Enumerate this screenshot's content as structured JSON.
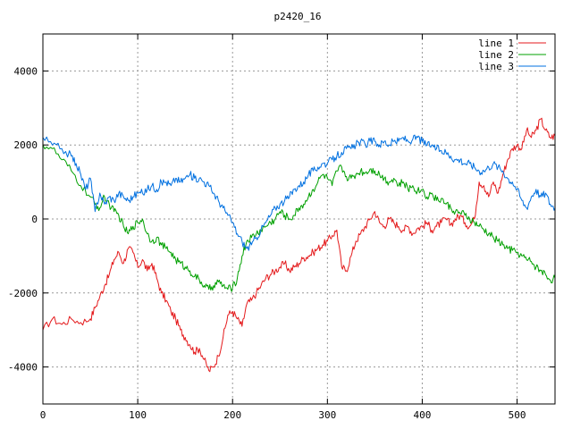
{
  "chart_data": {
    "type": "line",
    "title": "p2420_16",
    "xlabel": "",
    "ylabel": "",
    "xlim": [
      0,
      540
    ],
    "ylim": [
      -5000,
      5000
    ],
    "x_ticks": [
      0,
      100,
      200,
      300,
      400,
      500
    ],
    "y_ticks": [
      -4000,
      -2000,
      0,
      2000,
      4000
    ],
    "grid": true,
    "legend_position": "top-right",
    "series": [
      {
        "name": "line 1",
        "color": "#e41a1c",
        "points": [
          [
            0,
            -3000
          ],
          [
            10,
            -2700
          ],
          [
            20,
            -2850
          ],
          [
            30,
            -2700
          ],
          [
            40,
            -2800
          ],
          [
            50,
            -2700
          ],
          [
            55,
            -2400
          ],
          [
            60,
            -2100
          ],
          [
            65,
            -1800
          ],
          [
            70,
            -1500
          ],
          [
            75,
            -1100
          ],
          [
            80,
            -900
          ],
          [
            85,
            -1200
          ],
          [
            90,
            -800
          ],
          [
            95,
            -900
          ],
          [
            100,
            -1300
          ],
          [
            105,
            -1100
          ],
          [
            110,
            -1400
          ],
          [
            115,
            -1200
          ],
          [
            120,
            -1600
          ],
          [
            125,
            -2000
          ],
          [
            130,
            -2200
          ],
          [
            135,
            -2500
          ],
          [
            140,
            -2700
          ],
          [
            145,
            -3000
          ],
          [
            150,
            -3200
          ],
          [
            155,
            -3400
          ],
          [
            160,
            -3600
          ],
          [
            165,
            -3500
          ],
          [
            170,
            -3800
          ],
          [
            175,
            -4100
          ],
          [
            180,
            -4000
          ],
          [
            185,
            -3700
          ],
          [
            190,
            -3200
          ],
          [
            195,
            -2600
          ],
          [
            200,
            -2500
          ],
          [
            205,
            -2700
          ],
          [
            210,
            -2900
          ],
          [
            215,
            -2300
          ],
          [
            220,
            -2200
          ],
          [
            225,
            -2000
          ],
          [
            230,
            -1800
          ],
          [
            235,
            -1600
          ],
          [
            240,
            -1500
          ],
          [
            245,
            -1400
          ],
          [
            250,
            -1300
          ],
          [
            255,
            -1200
          ],
          [
            260,
            -1400
          ],
          [
            265,
            -1300
          ],
          [
            270,
            -1200
          ],
          [
            275,
            -1050
          ],
          [
            280,
            -1000
          ],
          [
            285,
            -900
          ],
          [
            290,
            -800
          ],
          [
            295,
            -700
          ],
          [
            300,
            -600
          ],
          [
            305,
            -450
          ],
          [
            310,
            -300
          ],
          [
            315,
            -1300
          ],
          [
            320,
            -1400
          ],
          [
            325,
            -1000
          ],
          [
            330,
            -600
          ],
          [
            335,
            -400
          ],
          [
            340,
            -200
          ],
          [
            345,
            0
          ],
          [
            350,
            200
          ],
          [
            355,
            -100
          ],
          [
            360,
            -200
          ],
          [
            365,
            0
          ],
          [
            370,
            -100
          ],
          [
            375,
            -200
          ],
          [
            380,
            -300
          ],
          [
            385,
            -200
          ],
          [
            390,
            -400
          ],
          [
            395,
            -250
          ],
          [
            400,
            -200
          ],
          [
            405,
            -100
          ],
          [
            410,
            -300
          ],
          [
            415,
            -200
          ],
          [
            420,
            -100
          ],
          [
            425,
            0
          ],
          [
            430,
            -150
          ],
          [
            435,
            0
          ],
          [
            440,
            100
          ],
          [
            445,
            -100
          ],
          [
            450,
            -200
          ],
          [
            455,
            0
          ],
          [
            460,
            1000
          ],
          [
            465,
            900
          ],
          [
            470,
            600
          ],
          [
            475,
            1000
          ],
          [
            480,
            700
          ],
          [
            485,
            1200
          ],
          [
            490,
            1600
          ],
          [
            495,
            1900
          ],
          [
            500,
            2000
          ],
          [
            505,
            1900
          ],
          [
            510,
            2400
          ],
          [
            515,
            2200
          ],
          [
            520,
            2400
          ],
          [
            525,
            2700
          ],
          [
            530,
            2400
          ],
          [
            535,
            2200
          ],
          [
            540,
            2250
          ]
        ]
      },
      {
        "name": "line 2",
        "color": "#00a000",
        "points": [
          [
            0,
            2000
          ],
          [
            10,
            1900
          ],
          [
            20,
            1600
          ],
          [
            30,
            1300
          ],
          [
            40,
            900
          ],
          [
            50,
            600
          ],
          [
            55,
            400
          ],
          [
            60,
            300
          ],
          [
            65,
            600
          ],
          [
            70,
            400
          ],
          [
            75,
            200
          ],
          [
            80,
            100
          ],
          [
            85,
            -200
          ],
          [
            90,
            -400
          ],
          [
            95,
            -200
          ],
          [
            100,
            -100
          ],
          [
            105,
            0
          ],
          [
            110,
            -400
          ],
          [
            115,
            -600
          ],
          [
            120,
            -500
          ],
          [
            125,
            -700
          ],
          [
            130,
            -800
          ],
          [
            135,
            -900
          ],
          [
            140,
            -1100
          ],
          [
            145,
            -1200
          ],
          [
            150,
            -1300
          ],
          [
            155,
            -1400
          ],
          [
            160,
            -1550
          ],
          [
            165,
            -1650
          ],
          [
            170,
            -1800
          ],
          [
            175,
            -1900
          ],
          [
            180,
            -1800
          ],
          [
            185,
            -1700
          ],
          [
            190,
            -1800
          ],
          [
            195,
            -1900
          ],
          [
            200,
            -1850
          ],
          [
            205,
            -1600
          ],
          [
            210,
            -1000
          ],
          [
            215,
            -600
          ],
          [
            220,
            -500
          ],
          [
            225,
            -400
          ],
          [
            230,
            -300
          ],
          [
            235,
            -200
          ],
          [
            240,
            -100
          ],
          [
            245,
            0
          ],
          [
            250,
            200
          ],
          [
            255,
            100
          ],
          [
            260,
            0
          ],
          [
            265,
            100
          ],
          [
            270,
            300
          ],
          [
            275,
            400
          ],
          [
            280,
            600
          ],
          [
            285,
            800
          ],
          [
            290,
            1000
          ],
          [
            295,
            1200
          ],
          [
            300,
            1100
          ],
          [
            305,
            900
          ],
          [
            310,
            1300
          ],
          [
            315,
            1400
          ],
          [
            320,
            1150
          ],
          [
            325,
            1100
          ],
          [
            330,
            1200
          ],
          [
            335,
            1300
          ],
          [
            340,
            1250
          ],
          [
            345,
            1350
          ],
          [
            350,
            1300
          ],
          [
            355,
            1200
          ],
          [
            360,
            1100
          ],
          [
            365,
            1000
          ],
          [
            370,
            1100
          ],
          [
            375,
            900
          ],
          [
            380,
            1000
          ],
          [
            385,
            800
          ],
          [
            390,
            900
          ],
          [
            395,
            750
          ],
          [
            400,
            800
          ],
          [
            405,
            600
          ],
          [
            410,
            700
          ],
          [
            415,
            500
          ],
          [
            420,
            550
          ],
          [
            425,
            400
          ],
          [
            430,
            300
          ],
          [
            435,
            200
          ],
          [
            440,
            150
          ],
          [
            445,
            100
          ],
          [
            450,
            0
          ],
          [
            455,
            -100
          ],
          [
            460,
            -200
          ],
          [
            465,
            -300
          ],
          [
            470,
            -400
          ],
          [
            475,
            -500
          ],
          [
            480,
            -600
          ],
          [
            485,
            -700
          ],
          [
            490,
            -800
          ],
          [
            495,
            -850
          ],
          [
            500,
            -900
          ],
          [
            505,
            -1000
          ],
          [
            510,
            -1100
          ],
          [
            515,
            -1150
          ],
          [
            520,
            -1300
          ],
          [
            525,
            -1400
          ],
          [
            530,
            -1500
          ],
          [
            535,
            -1650
          ],
          [
            540,
            -1600
          ]
        ]
      },
      {
        "name": "line 3",
        "color": "#0070e0",
        "points": [
          [
            0,
            2200
          ],
          [
            10,
            2000
          ],
          [
            20,
            1900
          ],
          [
            30,
            1700
          ],
          [
            35,
            1500
          ],
          [
            40,
            1200
          ],
          [
            45,
            800
          ],
          [
            50,
            1100
          ],
          [
            55,
            200
          ],
          [
            60,
            700
          ],
          [
            65,
            400
          ],
          [
            70,
            600
          ],
          [
            75,
            500
          ],
          [
            80,
            700
          ],
          [
            85,
            600
          ],
          [
            90,
            500
          ],
          [
            95,
            600
          ],
          [
            100,
            700
          ],
          [
            105,
            700
          ],
          [
            110,
            800
          ],
          [
            115,
            900
          ],
          [
            120,
            800
          ],
          [
            125,
            1000
          ],
          [
            130,
            1000
          ],
          [
            135,
            900
          ],
          [
            140,
            1100
          ],
          [
            145,
            1000
          ],
          [
            150,
            1100
          ],
          [
            155,
            1200
          ],
          [
            160,
            1100
          ],
          [
            165,
            1100
          ],
          [
            170,
            1000
          ],
          [
            175,
            900
          ],
          [
            180,
            700
          ],
          [
            185,
            500
          ],
          [
            190,
            300
          ],
          [
            195,
            100
          ],
          [
            200,
            -100
          ],
          [
            205,
            -400
          ],
          [
            210,
            -600
          ],
          [
            215,
            -800
          ],
          [
            220,
            -700
          ],
          [
            225,
            -500
          ],
          [
            230,
            -300
          ],
          [
            235,
            -100
          ],
          [
            240,
            100
          ],
          [
            245,
            300
          ],
          [
            250,
            400
          ],
          [
            255,
            500
          ],
          [
            260,
            600
          ],
          [
            265,
            800
          ],
          [
            270,
            900
          ],
          [
            275,
            1000
          ],
          [
            280,
            1200
          ],
          [
            285,
            1300
          ],
          [
            290,
            1400
          ],
          [
            295,
            1500
          ],
          [
            300,
            1500
          ],
          [
            305,
            1600
          ],
          [
            310,
            1700
          ],
          [
            315,
            1800
          ],
          [
            320,
            1900
          ],
          [
            325,
            1900
          ],
          [
            330,
            2000
          ],
          [
            335,
            2100
          ],
          [
            340,
            2000
          ],
          [
            345,
            2100
          ],
          [
            350,
            2100
          ],
          [
            355,
            2000
          ],
          [
            360,
            2100
          ],
          [
            365,
            2000
          ],
          [
            370,
            2100
          ],
          [
            375,
            2100
          ],
          [
            380,
            2200
          ],
          [
            385,
            2100
          ],
          [
            390,
            2150
          ],
          [
            395,
            2200
          ],
          [
            400,
            2100
          ],
          [
            405,
            2000
          ],
          [
            410,
            2000
          ],
          [
            415,
            1900
          ],
          [
            420,
            1850
          ],
          [
            425,
            1800
          ],
          [
            430,
            1700
          ],
          [
            435,
            1600
          ],
          [
            440,
            1600
          ],
          [
            445,
            1500
          ],
          [
            450,
            1500
          ],
          [
            455,
            1400
          ],
          [
            460,
            1300
          ],
          [
            465,
            1300
          ],
          [
            470,
            1400
          ],
          [
            475,
            1500
          ],
          [
            480,
            1400
          ],
          [
            485,
            1300
          ],
          [
            490,
            1100
          ],
          [
            495,
            1000
          ],
          [
            500,
            800
          ],
          [
            505,
            500
          ],
          [
            510,
            300
          ],
          [
            515,
            600
          ],
          [
            520,
            800
          ],
          [
            525,
            600
          ],
          [
            530,
            700
          ],
          [
            535,
            400
          ],
          [
            540,
            300
          ]
        ]
      }
    ]
  }
}
